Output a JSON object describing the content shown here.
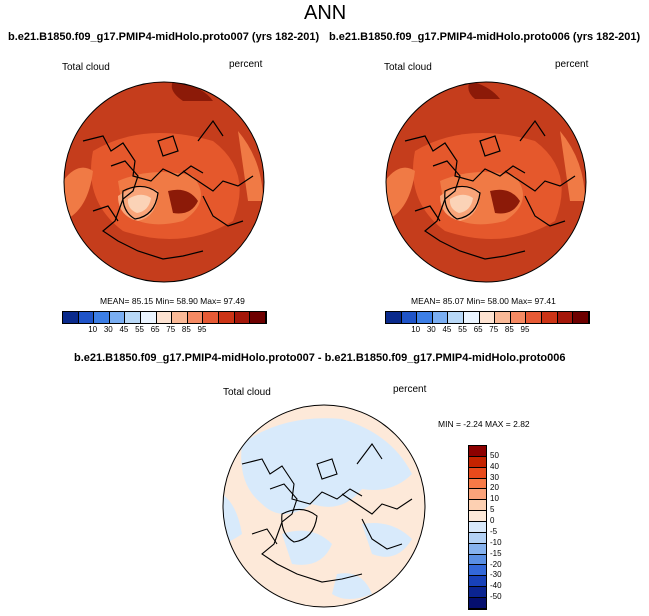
{
  "page": {
    "title": "ANN"
  },
  "panels": [
    {
      "case_title": "b.e21.B1850.f09_g17.PMIP4-midHolo.proto007 (yrs 182-201)",
      "variable": "Total cloud",
      "units": "percent",
      "stats": "MEAN=  85.15  Min=  58.90  Max=  97.49"
    },
    {
      "case_title": "b.e21.B1850.f09_g17.PMIP4-midHolo.proto006 (yrs 182-201)",
      "variable": "Total cloud",
      "units": "percent",
      "stats": "MEAN=  85.07  Min=  58.00  Max=  97.41"
    }
  ],
  "abs_colorbar": {
    "labels": [
      "10",
      "30",
      "45",
      "55",
      "65",
      "75",
      "85",
      "95"
    ],
    "colors": [
      "#0a2a8c",
      "#1f54c8",
      "#3d7fe6",
      "#7aaef2",
      "#b8d8f7",
      "#eaf4ff",
      "#fde3d2",
      "#f9b997",
      "#f58a63",
      "#e65a35",
      "#cc3416",
      "#a4170a",
      "#6e0000"
    ]
  },
  "diff_panel": {
    "title": "b.e21.B1850.f09_g17.PMIP4-midHolo.proto007 - b.e21.B1850.f09_g17.PMIP4-midHolo.proto006",
    "variable": "Total cloud",
    "units": "percent",
    "stats": "MIN =  -2.24 MAX =   2.82"
  },
  "diff_colorbar": {
    "labels": [
      "50",
      "40",
      "30",
      "20",
      "10",
      "5",
      "0",
      "-5",
      "-10",
      "-15",
      "-20",
      "-30",
      "-40",
      "-50"
    ],
    "colors": [
      "#8c0000",
      "#c42300",
      "#e84a1c",
      "#f77a47",
      "#fba37a",
      "#fdd0b2",
      "#fde9d9",
      "#d9e9fb",
      "#b3d1f5",
      "#86b2ee",
      "#5a8fe3",
      "#3368d8",
      "#1841b8",
      "#0b2490",
      "#050f6e"
    ]
  },
  "map_colors": {
    "panel1": {
      "base": "#c53d1c",
      "mid": "#e5582c",
      "low": "#f07a45",
      "lighter": "#f9a57a",
      "pale": "#fbd3b7",
      "dark": "#8c1a08"
    },
    "diff": {
      "base": "#d8eafb",
      "warm": "#fde9d9"
    }
  }
}
